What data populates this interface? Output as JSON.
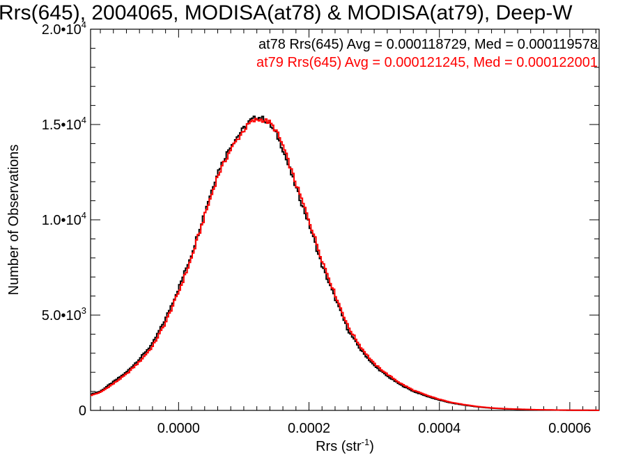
{
  "chart_data": {
    "type": "line",
    "title": "Rrs(645), 2004065, MODISA(at78) & MODISA(at79), Deep-W",
    "xlabel": "Rrs (str",
    "xlabel_sup": "-1",
    "xlabel_tail": ")",
    "ylabel": "Number of Observations",
    "xlim": [
      -0.000135,
      0.000645
    ],
    "ylim": [
      0,
      20000
    ],
    "x_ticks": [
      0.0,
      0.0002,
      0.0004,
      0.0006
    ],
    "x_tick_labels": [
      "0.0000",
      "0.0002",
      "0.0004",
      "0.0006"
    ],
    "y_ticks": [
      0,
      5000,
      10000,
      15000,
      20000
    ],
    "y_tick_labels": [
      {
        "base": "0",
        "exp": ""
      },
      {
        "base": "5.0•10",
        "exp": "3"
      },
      {
        "base": "1.0•10",
        "exp": "4"
      },
      {
        "base": "1.5•10",
        "exp": "4"
      },
      {
        "base": "2.0•10",
        "exp": "4"
      }
    ],
    "step": true,
    "grid": false,
    "legend_position": "top-right",
    "series": [
      {
        "name": "at78 Rrs(645) Avg = 0.000118729, Med = 0.000119578",
        "color": "#000000",
        "x": [
          -0.000135,
          -0.00012,
          -0.0001,
          -8e-05,
          -6e-05,
          -4e-05,
          -2e-05,
          0.0,
          2e-05,
          4e-05,
          6e-05,
          8e-05,
          0.0001,
          0.00011,
          0.00012,
          0.00013,
          0.00014,
          0.00015,
          0.00016,
          0.00018,
          0.0002,
          0.00022,
          0.00024,
          0.00026,
          0.00028,
          0.0003,
          0.00032,
          0.00034,
          0.00036,
          0.00038,
          0.0004,
          0.00042,
          0.00044,
          0.00046,
          0.00048,
          0.0005,
          0.00055,
          0.0006,
          0.000645
        ],
        "values": [
          850,
          1000,
          1500,
          2000,
          2700,
          3500,
          4800,
          6400,
          8200,
          10400,
          12500,
          13900,
          14800,
          15200,
          15400,
          15300,
          15000,
          14500,
          13700,
          11700,
          9800,
          7600,
          5900,
          4200,
          3150,
          2350,
          1800,
          1350,
          1000,
          750,
          540,
          380,
          270,
          180,
          120,
          80,
          30,
          10,
          5
        ]
      },
      {
        "name": "at79 Rrs(645) Avg = 0.000121245, Med = 0.000122001",
        "color": "#ff0000",
        "x": [
          -0.000135,
          -0.00012,
          -0.0001,
          -8e-05,
          -6e-05,
          -4e-05,
          -2e-05,
          0.0,
          2e-05,
          4e-05,
          6e-05,
          8e-05,
          0.0001,
          0.00011,
          0.00012,
          0.00013,
          0.00014,
          0.00015,
          0.00016,
          0.00018,
          0.0002,
          0.00022,
          0.00024,
          0.00026,
          0.00028,
          0.0003,
          0.00032,
          0.00034,
          0.00036,
          0.00038,
          0.0004,
          0.00042,
          0.00044,
          0.00046,
          0.00048,
          0.0005,
          0.00055,
          0.0006,
          0.000645
        ],
        "values": [
          780,
          950,
          1400,
          1900,
          2550,
          3350,
          4600,
          6200,
          8000,
          10200,
          12300,
          13700,
          14700,
          15100,
          15250,
          15250,
          15100,
          14650,
          13900,
          11900,
          10000,
          7900,
          6100,
          4400,
          3300,
          2450,
          1900,
          1430,
          1060,
          800,
          580,
          410,
          290,
          195,
          130,
          90,
          35,
          12,
          6
        ]
      }
    ]
  }
}
